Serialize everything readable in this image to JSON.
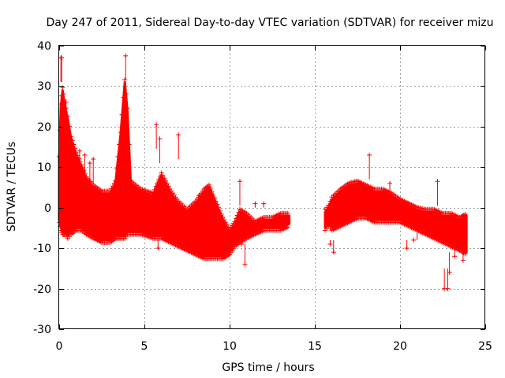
{
  "chart_data": {
    "type": "scatter",
    "title": "Day 247 of 2011, Sidereal Day-to-day VTEC variation (SDTVAR) for receiver mizu",
    "xlabel": "GPS time / hours",
    "ylabel": "SDTVAR / TECUs",
    "xlim": [
      0,
      25
    ],
    "ylim": [
      -30,
      40
    ],
    "xticks": [
      0,
      5,
      10,
      15,
      20,
      25
    ],
    "yticks": [
      -30,
      -20,
      -10,
      0,
      10,
      20,
      30,
      40
    ],
    "grid": true,
    "marker": "+",
    "color": "#ff0000",
    "series": [
      {
        "name": "SDTVAR",
        "description": "dense point cloud; envelope given as [hour, lower, upper] in TECU",
        "band": [
          [
            0.0,
            -3,
            12
          ],
          [
            0.1,
            -5,
            25
          ],
          [
            0.2,
            -6,
            29
          ],
          [
            0.3,
            -6,
            26
          ],
          [
            0.5,
            -7,
            22
          ],
          [
            0.7,
            -6,
            17
          ],
          [
            1.0,
            -5,
            13
          ],
          [
            1.3,
            -5,
            10
          ],
          [
            1.6,
            -6,
            7
          ],
          [
            2.0,
            -7,
            5
          ],
          [
            2.5,
            -8,
            3.5
          ],
          [
            3.0,
            -8,
            3.5
          ],
          [
            3.3,
            -7,
            6
          ],
          [
            3.6,
            -7,
            18
          ],
          [
            3.85,
            -7,
            31
          ],
          [
            4.0,
            -6,
            24
          ],
          [
            4.2,
            -6,
            6
          ],
          [
            4.8,
            -6,
            4
          ],
          [
            5.5,
            -7,
            3
          ],
          [
            6.0,
            -7,
            8
          ],
          [
            6.5,
            -8,
            4
          ],
          [
            7.0,
            -9,
            1
          ],
          [
            7.5,
            -10,
            -1
          ],
          [
            8.0,
            -11,
            1
          ],
          [
            8.5,
            -12,
            4
          ],
          [
            8.8,
            -12,
            5
          ],
          [
            9.2,
            -12,
            1
          ],
          [
            9.6,
            -12,
            -3
          ],
          [
            10.0,
            -11,
            -6
          ],
          [
            10.3,
            -9,
            -4
          ],
          [
            10.6,
            -8,
            -1
          ],
          [
            11.0,
            -7,
            -2
          ],
          [
            11.5,
            -6,
            -4
          ],
          [
            12.0,
            -5,
            -3
          ],
          [
            12.5,
            -5,
            -3
          ],
          [
            13.0,
            -5,
            -2
          ],
          [
            13.5,
            -4,
            -2
          ],
          [
            15.6,
            -5,
            -1
          ],
          [
            15.8,
            -4,
            0
          ],
          [
            16.0,
            -5,
            2
          ],
          [
            16.5,
            -4,
            4
          ],
          [
            17.0,
            -3,
            5.5
          ],
          [
            17.5,
            -2,
            6
          ],
          [
            18.0,
            -2,
            5
          ],
          [
            18.5,
            -3,
            4
          ],
          [
            19.0,
            -3,
            4
          ],
          [
            19.5,
            -3,
            3
          ],
          [
            20.0,
            -3,
            1.5
          ],
          [
            20.5,
            -4,
            0.5
          ],
          [
            21.0,
            -5,
            -0.5
          ],
          [
            21.5,
            -6,
            -1
          ],
          [
            22.0,
            -7,
            -1
          ],
          [
            22.5,
            -8,
            -2
          ],
          [
            23.0,
            -9,
            -2
          ],
          [
            23.5,
            -10,
            -3
          ],
          [
            23.9,
            -11,
            -2
          ]
        ],
        "outliers": [
          [
            0.1,
            37
          ],
          [
            0.15,
            37
          ],
          [
            0.4,
            26
          ],
          [
            3.9,
            37.5
          ],
          [
            1.2,
            14
          ],
          [
            1.5,
            13
          ],
          [
            1.8,
            11
          ],
          [
            5.7,
            20.5
          ],
          [
            5.9,
            17
          ],
          [
            7.0,
            18
          ],
          [
            8.2,
            3
          ],
          [
            10.6,
            6.5
          ],
          [
            10.7,
            -9
          ],
          [
            10.9,
            -14
          ],
          [
            11.5,
            1
          ],
          [
            12.0,
            1
          ],
          [
            18.2,
            13
          ],
          [
            19.4,
            6
          ],
          [
            22.2,
            6.5
          ],
          [
            22.6,
            -20
          ],
          [
            22.8,
            -20
          ],
          [
            22.9,
            -16
          ],
          [
            15.9,
            -9
          ],
          [
            16.1,
            -11
          ],
          [
            23.2,
            -12
          ],
          [
            23.7,
            -13
          ],
          [
            21.0,
            -3
          ],
          [
            20.8,
            -8
          ],
          [
            20.4,
            -10
          ],
          [
            2.0,
            12
          ],
          [
            0.8,
            5
          ],
          [
            6.8,
            -5
          ],
          [
            5.8,
            -10
          ]
        ]
      }
    ]
  }
}
